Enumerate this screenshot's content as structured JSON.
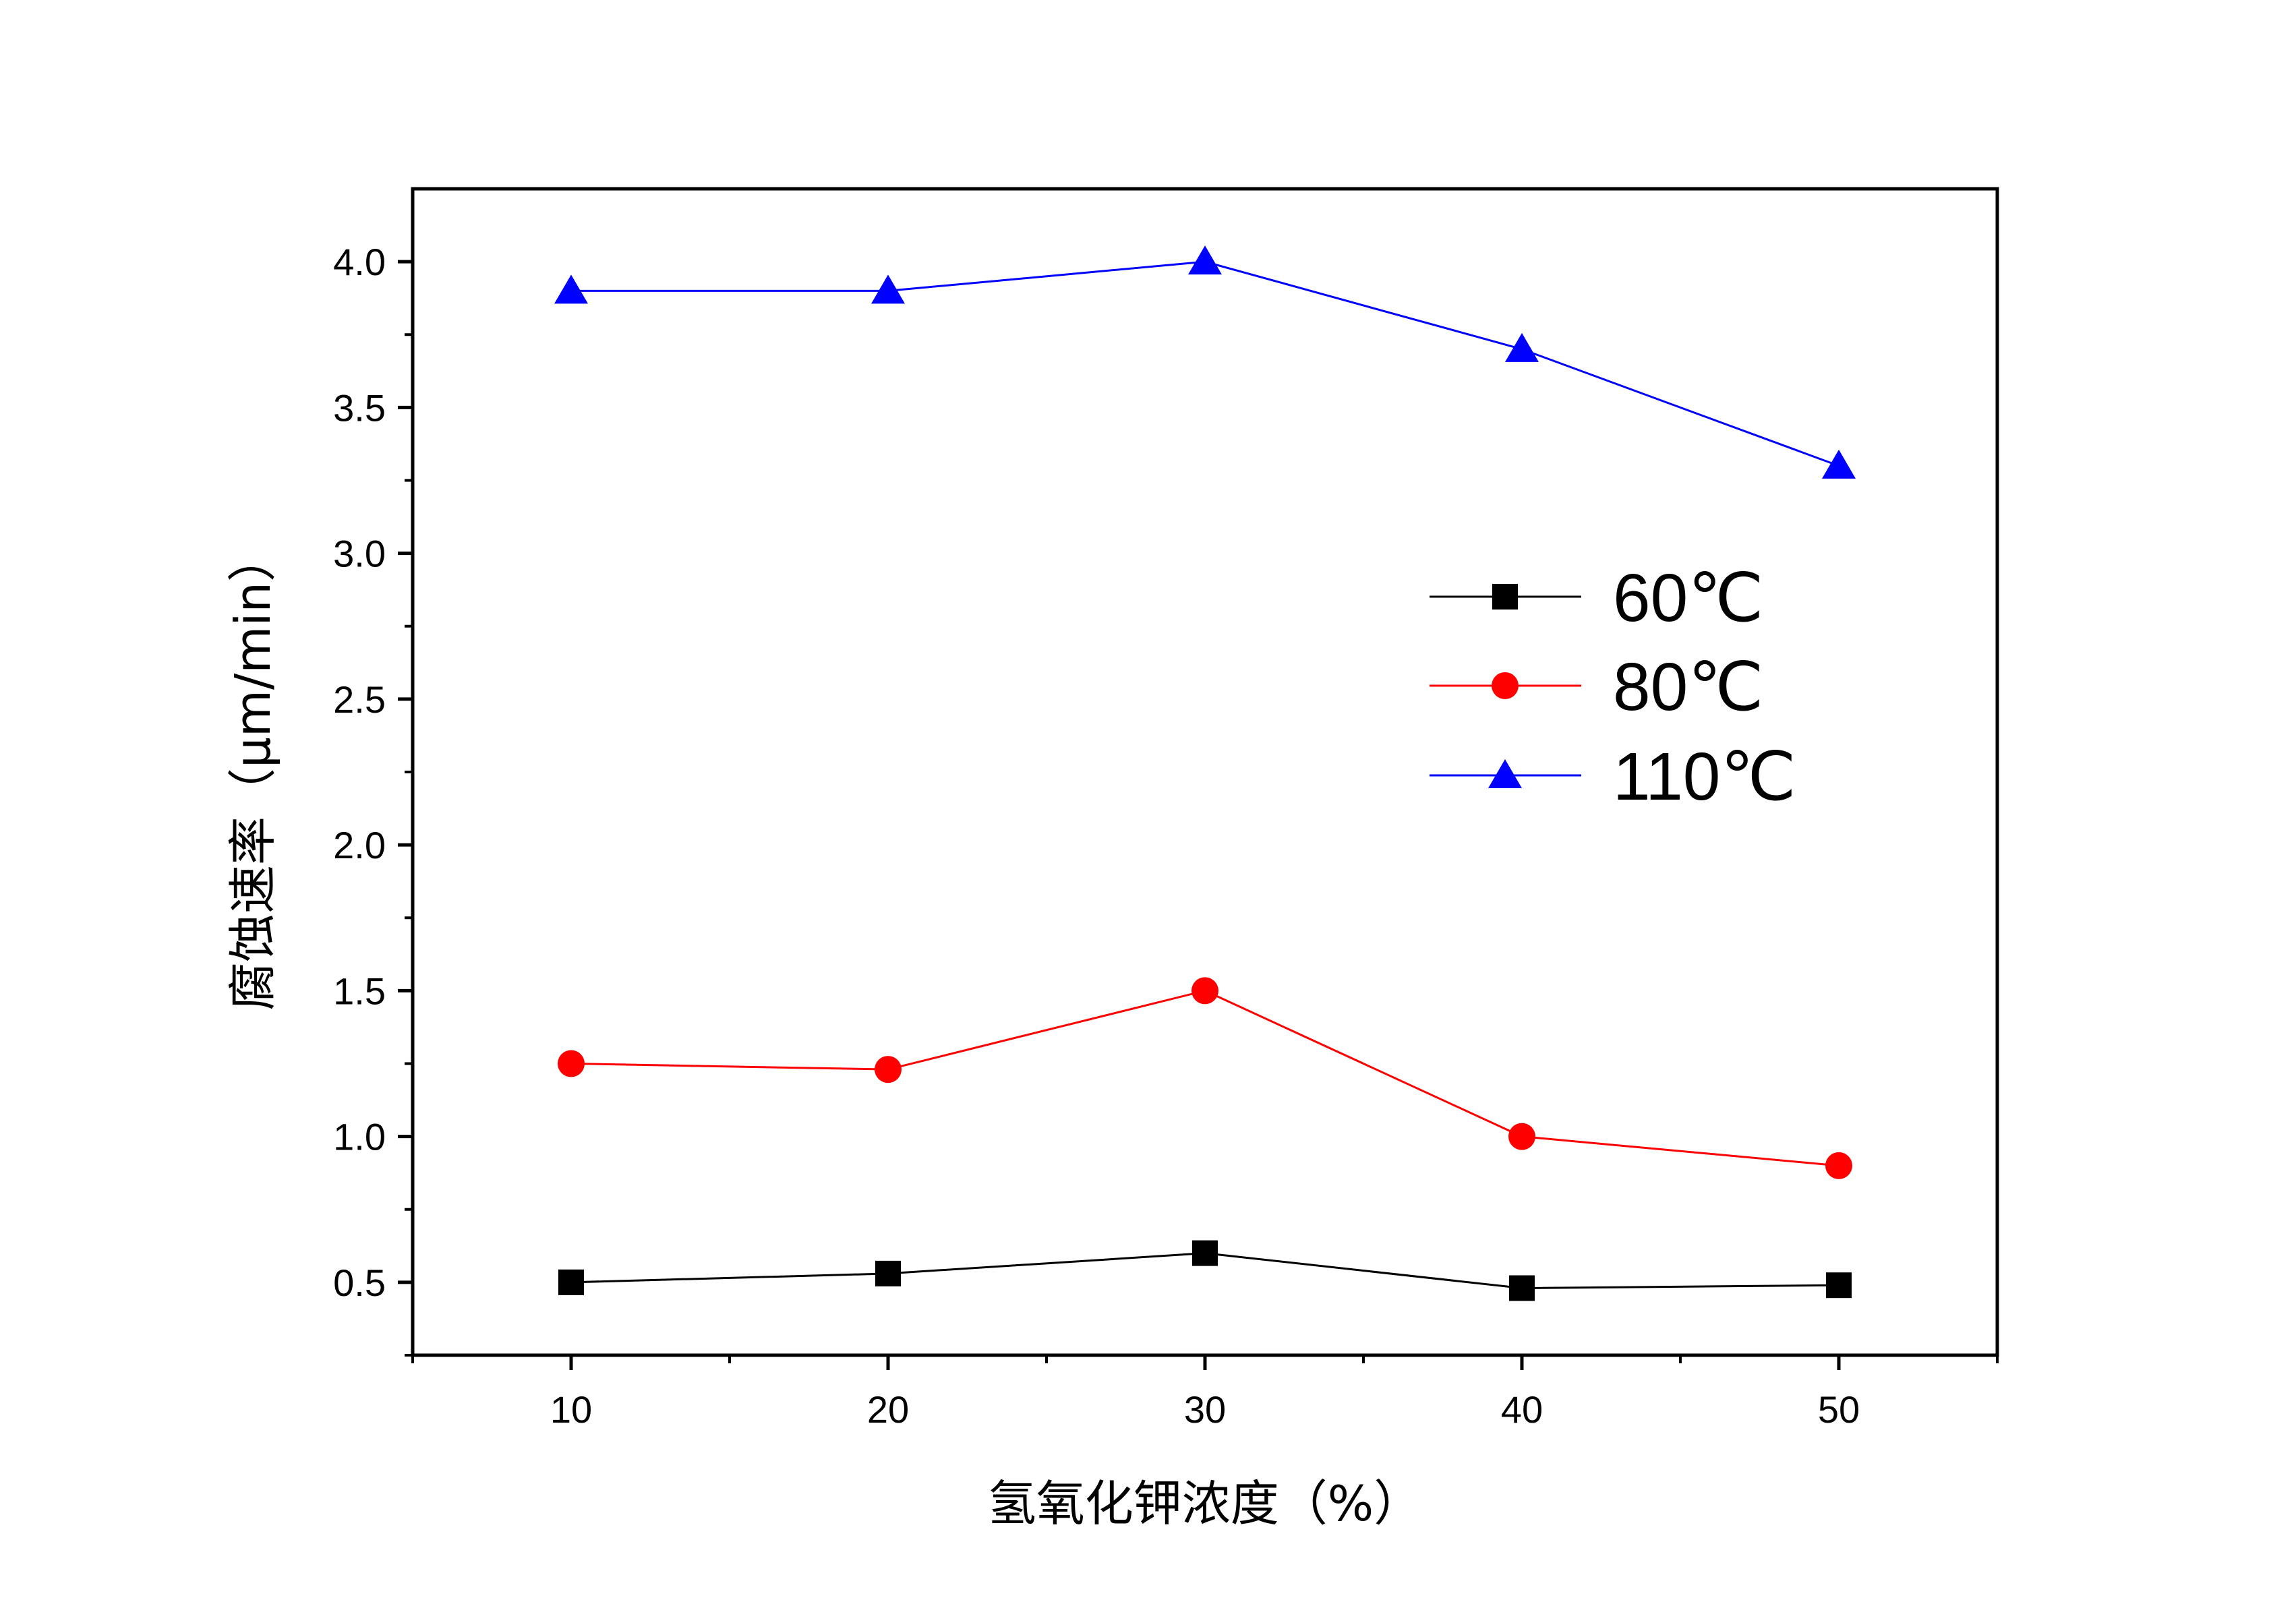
{
  "chart_data": {
    "type": "line",
    "xlabel": "氢氧化钾浓度（%）",
    "ylabel": "腐蚀速率（μm/min）",
    "x": [
      10,
      20,
      30,
      40,
      50
    ],
    "xlim": [
      5,
      55
    ],
    "ylim": [
      0.25,
      4.25
    ],
    "xticks": [
      10,
      20,
      30,
      40,
      50
    ],
    "xtick_labels": [
      "10",
      "20",
      "30",
      "40",
      "50"
    ],
    "yticks": [
      0.5,
      1.0,
      1.5,
      2.0,
      2.5,
      3.0,
      3.5,
      4.0
    ],
    "ytick_labels": [
      "0.5",
      "1.0",
      "1.5",
      "2.0",
      "2.5",
      "3.0",
      "3.5",
      "4.0"
    ],
    "legend_position": "right",
    "series": [
      {
        "name": "60℃",
        "color": "#000000",
        "marker": "square",
        "values": [
          0.5,
          0.53,
          0.6,
          0.48,
          0.49
        ]
      },
      {
        "name": "80℃",
        "color": "#ff0000",
        "marker": "circle",
        "values": [
          1.25,
          1.23,
          1.5,
          1.0,
          0.9
        ]
      },
      {
        "name": "110℃",
        "color": "#0000ff",
        "marker": "triangle",
        "values": [
          3.9,
          3.9,
          4.0,
          3.7,
          3.3
        ]
      }
    ]
  }
}
